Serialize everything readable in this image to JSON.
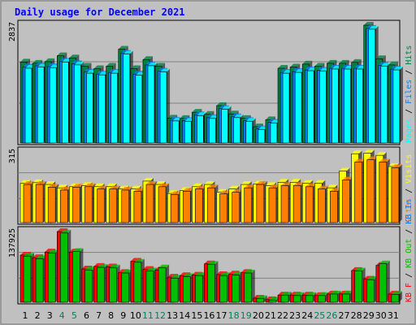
{
  "title": "Daily usage for December 2021",
  "colors": {
    "background": "#c0c0c0",
    "plot_bg": "#c0c0c0",
    "title": "#0000ff",
    "hits": "#008040",
    "files": "#0080ff",
    "pages": "#00ffff",
    "visits": "#ffff00",
    "sites": "#ff8000",
    "kbin": "#0080ff",
    "kbout": "#00c000",
    "kbf": "#ff0000",
    "weekend": "#00805c"
  },
  "chart_data": [
    {
      "type": "bar",
      "panel": "hits-files-pages",
      "ymax_label": "2837",
      "ylim": [
        0,
        2837
      ],
      "legend": [
        {
          "text": "Pages",
          "color": "#00ffff"
        },
        {
          "text": "Files",
          "color": "#0080ff"
        },
        {
          "text": "Hits",
          "color": "#008040"
        }
      ],
      "categories": [
        "1",
        "2",
        "3",
        "4",
        "5",
        "6",
        "7",
        "8",
        "9",
        "10",
        "11",
        "12",
        "13",
        "14",
        "15",
        "16",
        "17",
        "18",
        "19",
        "20",
        "21",
        "22",
        "23",
        "24",
        "25",
        "26",
        "27",
        "28",
        "29",
        "30",
        "31"
      ],
      "series": [
        {
          "name": "Hits",
          "values": [
            1950,
            1920,
            1960,
            2100,
            2050,
            1850,
            1790,
            1850,
            2260,
            1790,
            2010,
            1850,
            600,
            590,
            740,
            690,
            900,
            700,
            590,
            390,
            560,
            1800,
            1830,
            1900,
            1850,
            1920,
            1920,
            1940,
            2837,
            2030,
            1880
          ]
        },
        {
          "name": "Files",
          "values": [
            1830,
            1860,
            1840,
            1970,
            1910,
            1710,
            1660,
            1700,
            2160,
            1660,
            1880,
            1730,
            550,
            540,
            680,
            610,
            830,
            630,
            540,
            340,
            500,
            1700,
            1720,
            1760,
            1750,
            1800,
            1800,
            1800,
            2760,
            1870,
            1780
          ]
        },
        {
          "name": "Pages",
          "values": [
            1800,
            1830,
            1810,
            1950,
            1880,
            1680,
            1640,
            1680,
            2140,
            1630,
            1860,
            1710,
            530,
            520,
            660,
            590,
            810,
            610,
            520,
            320,
            480,
            1680,
            1700,
            1740,
            1730,
            1780,
            1780,
            1780,
            2740,
            1850,
            1760
          ]
        }
      ]
    },
    {
      "type": "bar",
      "panel": "visits-sites",
      "ymax_label": "315",
      "ylim": [
        0,
        315
      ],
      "legend": [
        {
          "text": "Sites",
          "color": "#ff8000"
        },
        {
          "text": "Visits",
          "color": "#ffff00"
        }
      ],
      "categories": [
        "1",
        "2",
        "3",
        "4",
        "5",
        "6",
        "7",
        "8",
        "9",
        "10",
        "11",
        "12",
        "13",
        "14",
        "15",
        "16",
        "17",
        "18",
        "19",
        "20",
        "21",
        "22",
        "23",
        "24",
        "25",
        "26",
        "27",
        "28",
        "29",
        "30",
        "31"
      ],
      "series": [
        {
          "name": "Visits",
          "values": [
            175,
            178,
            170,
            155,
            160,
            165,
            160,
            160,
            150,
            150,
            185,
            170,
            130,
            143,
            160,
            170,
            135,
            150,
            170,
            172,
            165,
            180,
            180,
            175,
            175,
            155,
            230,
            307,
            310,
            300,
            250
          ]
        },
        {
          "name": "Sites",
          "values": [
            170,
            170,
            158,
            145,
            158,
            160,
            150,
            150,
            145,
            140,
            170,
            160,
            125,
            140,
            150,
            155,
            128,
            135,
            155,
            170,
            155,
            165,
            165,
            160,
            150,
            140,
            190,
            270,
            280,
            270,
            245
          ]
        }
      ]
    },
    {
      "type": "bar",
      "panel": "kbytes",
      "ymax_label": "137925",
      "ylim": [
        0,
        137925
      ],
      "legend": [
        {
          "text": "KB F",
          "color": "#ff0000"
        },
        {
          "text": "KB Out",
          "color": "#00c000"
        },
        {
          "text": "KB In",
          "color": "#0080ff"
        }
      ],
      "categories": [
        "1",
        "2",
        "3",
        "4",
        "5",
        "6",
        "7",
        "8",
        "9",
        "10",
        "11",
        "12",
        "13",
        "14",
        "15",
        "16",
        "17",
        "18",
        "19",
        "20",
        "21",
        "22",
        "23",
        "24",
        "25",
        "26",
        "27",
        "28",
        "29",
        "30",
        "31"
      ],
      "series": [
        {
          "name": "KB F",
          "values": [
            92000,
            87000,
            98000,
            137925,
            98000,
            65000,
            70000,
            69000,
            58000,
            80000,
            64000,
            63000,
            49000,
            52000,
            53000,
            75000,
            54000,
            55000,
            58000,
            8000,
            5000,
            14000,
            14000,
            14000,
            13000,
            16000,
            16000,
            62000,
            45000,
            72000,
            16000
          ]
        },
        {
          "name": "KB Out",
          "values": [
            90000,
            85000,
            96000,
            135000,
            99000,
            63000,
            68000,
            67000,
            57000,
            78000,
            61000,
            67000,
            47000,
            50000,
            52000,
            74000,
            52000,
            53000,
            57000,
            7000,
            4000,
            14000,
            13000,
            13000,
            13000,
            16000,
            16000,
            61000,
            44000,
            75000,
            15000
          ]
        }
      ]
    }
  ],
  "weekend_days": [
    "4",
    "5",
    "11",
    "12",
    "18",
    "19",
    "25",
    "26"
  ]
}
